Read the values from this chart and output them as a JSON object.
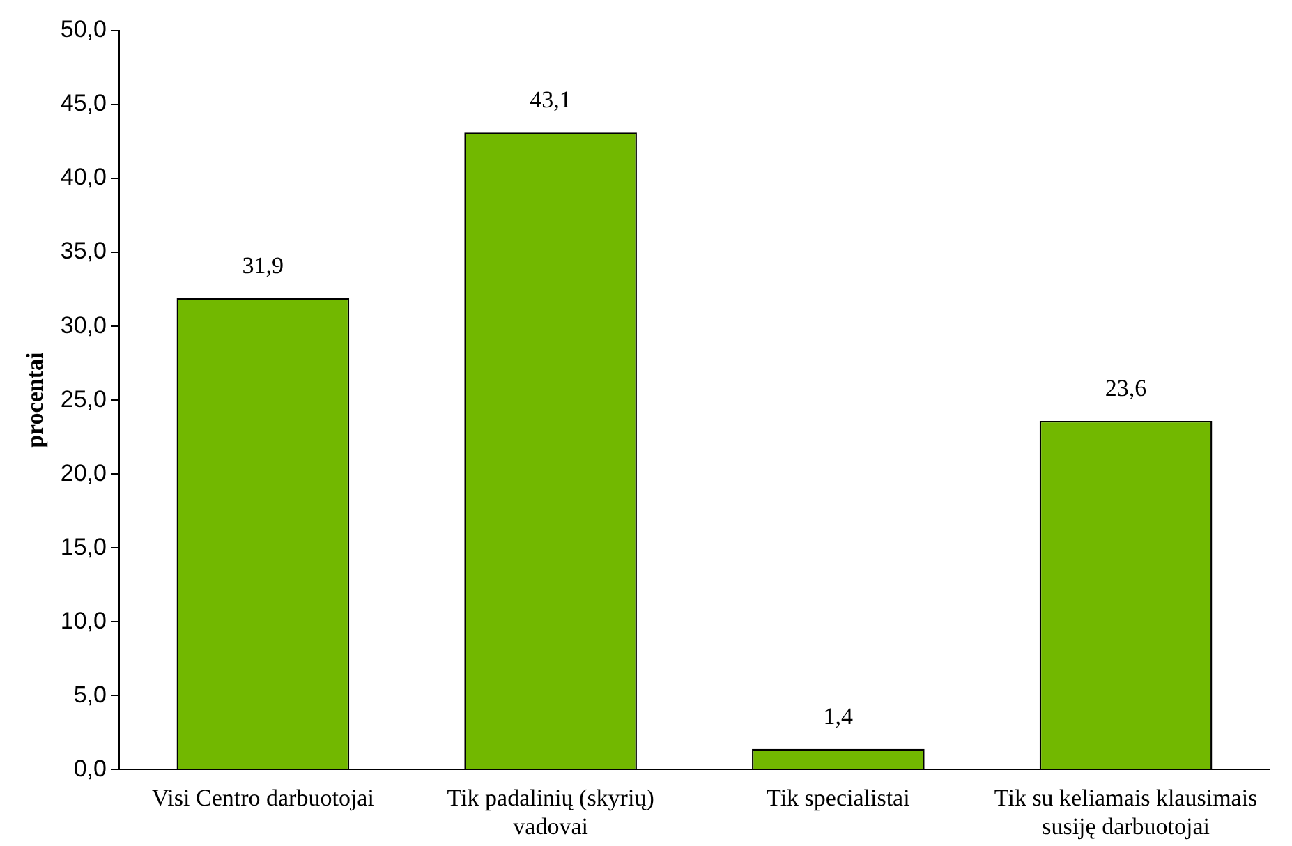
{
  "chart_data": {
    "type": "bar",
    "ylabel": "procentai",
    "categories": [
      "Visi Centro darbuotojai",
      "Tik padalinių (skyrių) vadovai",
      "Tik specialistai",
      "Tik su keliamais klausimais susiję darbuotojai"
    ],
    "values": [
      31.9,
      43.1,
      1.4,
      23.6
    ],
    "value_labels": [
      "31,9",
      "43,1",
      "1,4",
      "23,6"
    ],
    "color": "#72b800",
    "ylim": [
      0,
      50
    ],
    "yticks": [
      {
        "value": 0,
        "label": "0,0"
      },
      {
        "value": 5,
        "label": "5,0"
      },
      {
        "value": 10,
        "label": "10,0"
      },
      {
        "value": 15,
        "label": "15,0"
      },
      {
        "value": 20,
        "label": "20,0"
      },
      {
        "value": 25,
        "label": "25,0"
      },
      {
        "value": 30,
        "label": "30,0"
      },
      {
        "value": 35,
        "label": "35,0"
      },
      {
        "value": 40,
        "label": "40,0"
      },
      {
        "value": 45,
        "label": "45,0"
      },
      {
        "value": 50,
        "label": "50,0"
      }
    ],
    "grid": false,
    "legend": false
  }
}
